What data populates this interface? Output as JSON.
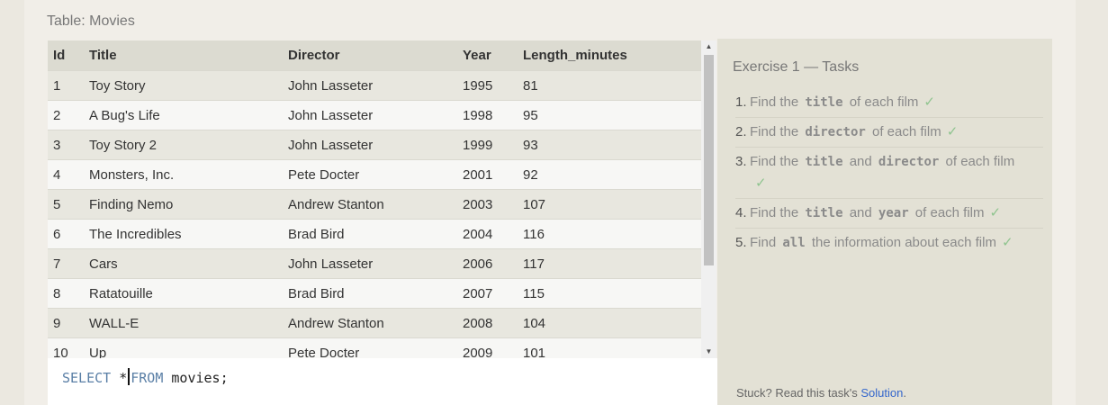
{
  "table_label": "Table: Movies",
  "table": {
    "headers": [
      "Id",
      "Title",
      "Director",
      "Year",
      "Length_minutes"
    ],
    "rows": [
      [
        "1",
        "Toy Story",
        "John Lasseter",
        "1995",
        "81"
      ],
      [
        "2",
        "A Bug's Life",
        "John Lasseter",
        "1998",
        "95"
      ],
      [
        "3",
        "Toy Story 2",
        "John Lasseter",
        "1999",
        "93"
      ],
      [
        "4",
        "Monsters, Inc.",
        "Pete Docter",
        "2001",
        "92"
      ],
      [
        "5",
        "Finding Nemo",
        "Andrew Stanton",
        "2003",
        "107"
      ],
      [
        "6",
        "The Incredibles",
        "Brad Bird",
        "2004",
        "116"
      ],
      [
        "7",
        "Cars",
        "John Lasseter",
        "2006",
        "117"
      ],
      [
        "8",
        "Ratatouille",
        "Brad Bird",
        "2007",
        "115"
      ],
      [
        "9",
        "WALL-E",
        "Andrew Stanton",
        "2008",
        "104"
      ],
      [
        "10",
        "Up",
        "Pete Docter",
        "2009",
        "101"
      ]
    ]
  },
  "editor": {
    "tokens": {
      "select": "SELECT",
      "star": "*",
      "from": "FROM",
      "table": "movies;"
    }
  },
  "tasks": {
    "title": "Exercise 1 — Tasks",
    "check_icon": "✓",
    "items": [
      {
        "num": "1.",
        "pre": "Find the",
        "code": "title",
        "post": "of each film"
      },
      {
        "num": "2.",
        "pre": "Find the",
        "code": "director",
        "post": "of each film"
      },
      {
        "num": "3.",
        "pre": "Find the",
        "code": "title",
        "mid": "and",
        "code2": "director",
        "post": "of each film"
      },
      {
        "num": "4.",
        "pre": "Find the",
        "code": "title",
        "mid": "and",
        "code2": "year",
        "post": "of each film"
      },
      {
        "num": "5.",
        "pre": "Find",
        "code": "all",
        "post": "the information about each film"
      }
    ],
    "stuck_text": "Stuck? Read this task's",
    "solution_link": "Solution",
    "stuck_end": "."
  },
  "colors": {
    "accent_link": "#3366cc",
    "check": "#8fc48f",
    "keyword": "#5a7fa6"
  }
}
